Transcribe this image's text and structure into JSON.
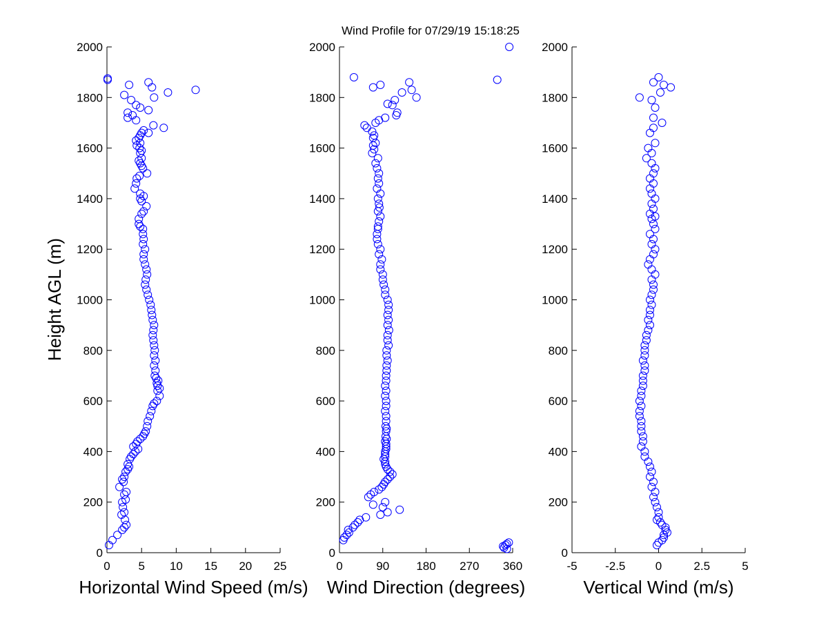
{
  "title": "Wind Profile for  07/29/19 15:18:25",
  "ylabel": "Height AGL (m)",
  "colors": {
    "marker": "#0000ff",
    "axes": "#000000",
    "background": "#ffffff"
  },
  "chart_data": [
    {
      "type": "scatter",
      "xlabel": "Horizontal Wind Speed (m/s)",
      "ylabel": "Height AGL (m)",
      "xlim": [
        0,
        25
      ],
      "ylim": [
        0,
        2000
      ],
      "xticks": [
        "0",
        "5",
        "10",
        "15",
        "20",
        "25"
      ],
      "yticks": [
        "0",
        "200",
        "400",
        "600",
        "800",
        "1000",
        "1200",
        "1400",
        "1600",
        "1800",
        "2000"
      ],
      "grid": false,
      "marker": "open-circle",
      "x": [
        0.1,
        0.1,
        3.2,
        6.0,
        2.5,
        12.8,
        8.8,
        6.5,
        6.8,
        3.5,
        4.2,
        4.8,
        3.0,
        6.0,
        3.7,
        4.2,
        6.7,
        3.0,
        8.2,
        5.3,
        5.0,
        6.0,
        4.8,
        4.6,
        4.2,
        4.8,
        4.3,
        4.7,
        5.0,
        4.8,
        5.0,
        4.6,
        4.8,
        5.0,
        5.2,
        5.8,
        4.7,
        4.3,
        4.2,
        4.0,
        4.8,
        5.3,
        4.8,
        5.0,
        5.7,
        5.3,
        5.0,
        4.6,
        4.6,
        4.8,
        5.2,
        5.2,
        5.3,
        5.2,
        5.5,
        5.3,
        5.3,
        5.5,
        5.7,
        5.8,
        5.6,
        5.5,
        5.7,
        5.9,
        6.1,
        6.3,
        6.4,
        6.5,
        6.6,
        6.8,
        6.7,
        6.6,
        6.7,
        6.8,
        6.9,
        6.8,
        7.0,
        6.8,
        7.0,
        6.9,
        7.1,
        7.4,
        7.2,
        7.3,
        7.6,
        7.3,
        7.6,
        7.2,
        6.8,
        6.6,
        6.4,
        6.2,
        5.9,
        5.8,
        5.6,
        5.4,
        5.2,
        4.8,
        4.4,
        4.2,
        3.8,
        4.5,
        4.1,
        3.8,
        3.5,
        3.3,
        3.0,
        3.2,
        3.0,
        2.7,
        2.5,
        2.2,
        2.4,
        1.8,
        2.8,
        2.5,
        2.7,
        2.2,
        2.3,
        2.5,
        2.1,
        2.6,
        2.8,
        2.5,
        2.2,
        1.5,
        0.8,
        0.3
      ],
      "y": [
        1875,
        1870,
        1850,
        1860,
        1810,
        1830,
        1820,
        1840,
        1800,
        1790,
        1770,
        1760,
        1740,
        1750,
        1730,
        1710,
        1690,
        1720,
        1680,
        1670,
        1660,
        1660,
        1650,
        1640,
        1630,
        1620,
        1610,
        1600,
        1590,
        1580,
        1560,
        1550,
        1540,
        1530,
        1520,
        1500,
        1490,
        1480,
        1460,
        1440,
        1420,
        1410,
        1400,
        1390,
        1370,
        1350,
        1340,
        1320,
        1300,
        1290,
        1280,
        1260,
        1240,
        1220,
        1200,
        1180,
        1160,
        1140,
        1120,
        1100,
        1080,
        1060,
        1040,
        1020,
        1000,
        980,
        960,
        940,
        920,
        900,
        880,
        860,
        840,
        820,
        800,
        780,
        760,
        740,
        720,
        700,
        690,
        680,
        670,
        660,
        650,
        640,
        620,
        600,
        590,
        580,
        560,
        540,
        520,
        500,
        480,
        470,
        460,
        450,
        440,
        430,
        420,
        410,
        400,
        390,
        380,
        370,
        350,
        340,
        330,
        320,
        300,
        290,
        280,
        260,
        240,
        230,
        210,
        200,
        180,
        160,
        150,
        130,
        110,
        100,
        90,
        70,
        50,
        30
      ]
    },
    {
      "type": "scatter",
      "xlabel": "Wind Direction (degrees)",
      "ylabel": "",
      "xlim": [
        0,
        360
      ],
      "ylim": [
        0,
        2000
      ],
      "xticks": [
        "0",
        "90",
        "180",
        "270",
        "360"
      ],
      "yticks": [
        "0",
        "200",
        "400",
        "600",
        "800",
        "1000",
        "1200",
        "1400",
        "1600",
        "1800",
        "2000"
      ],
      "grid": false,
      "marker": "open-circle",
      "x": [
        353,
        328,
        30,
        145,
        85,
        70,
        130,
        150,
        160,
        115,
        100,
        110,
        120,
        118,
        95,
        82,
        75,
        52,
        57,
        68,
        72,
        70,
        75,
        70,
        72,
        68,
        80,
        75,
        78,
        82,
        80,
        82,
        78,
        85,
        80,
        82,
        83,
        80,
        85,
        82,
        80,
        80,
        78,
        78,
        80,
        85,
        82,
        88,
        85,
        85,
        90,
        90,
        92,
        95,
        95,
        100,
        102,
        102,
        100,
        102,
        100,
        103,
        100,
        100,
        102,
        98,
        98,
        100,
        98,
        98,
        97,
        97,
        95,
        97,
        95,
        97,
        97,
        95,
        97,
        97,
        96,
        98,
        97,
        96,
        98,
        95,
        97,
        97,
        97,
        95,
        95,
        95,
        92,
        95,
        95,
        97,
        100,
        105,
        110,
        105,
        100,
        95,
        92,
        88,
        82,
        72,
        65,
        60,
        95,
        70,
        90,
        125,
        100,
        85,
        55,
        42,
        38,
        32,
        28,
        18,
        20,
        15,
        10,
        8,
        352,
        348,
        345,
        340,
        342,
        348
      ],
      "y": [
        2000,
        1870,
        1880,
        1860,
        1850,
        1840,
        1820,
        1830,
        1800,
        1790,
        1775,
        1770,
        1740,
        1730,
        1720,
        1710,
        1700,
        1690,
        1680,
        1665,
        1650,
        1640,
        1620,
        1610,
        1595,
        1580,
        1560,
        1540,
        1520,
        1500,
        1480,
        1460,
        1440,
        1420,
        1400,
        1380,
        1365,
        1350,
        1330,
        1310,
        1290,
        1280,
        1260,
        1240,
        1220,
        1200,
        1180,
        1160,
        1140,
        1120,
        1100,
        1080,
        1060,
        1040,
        1020,
        1000,
        980,
        960,
        940,
        920,
        900,
        880,
        860,
        840,
        820,
        800,
        780,
        760,
        740,
        720,
        700,
        680,
        660,
        640,
        620,
        600,
        580,
        560,
        540,
        520,
        500,
        490,
        480,
        460,
        450,
        440,
        430,
        420,
        410,
        400,
        390,
        380,
        370,
        360,
        350,
        340,
        330,
        320,
        310,
        300,
        290,
        280,
        270,
        260,
        250,
        240,
        230,
        220,
        200,
        190,
        180,
        170,
        160,
        150,
        140,
        130,
        120,
        110,
        100,
        90,
        80,
        70,
        60,
        50,
        40,
        35,
        30,
        25,
        20,
        15
      ]
    },
    {
      "type": "scatter",
      "xlabel": "Vertical Wind (m/s)",
      "ylabel": "",
      "xlim": [
        -5,
        5
      ],
      "ylim": [
        0,
        2000
      ],
      "xticks": [
        "-5",
        "-2.5",
        "0",
        "2.5",
        "5"
      ],
      "yticks": [
        "0",
        "200",
        "400",
        "600",
        "800",
        "1000",
        "1200",
        "1400",
        "1600",
        "1800",
        "2000"
      ],
      "grid": false,
      "marker": "open-circle",
      "x": [
        0.0,
        -0.3,
        0.3,
        0.7,
        -1.1,
        0.1,
        -0.4,
        -0.2,
        -0.3,
        0.2,
        -0.3,
        -0.5,
        -0.2,
        -0.6,
        -0.4,
        -0.7,
        -0.4,
        -0.2,
        -0.3,
        -0.5,
        -0.3,
        -0.5,
        -0.4,
        -0.2,
        -0.4,
        -0.3,
        -0.5,
        -0.2,
        -0.4,
        -0.3,
        -0.2,
        -0.5,
        -0.3,
        -0.4,
        -0.2,
        -0.3,
        -0.5,
        -0.6,
        -0.4,
        -0.2,
        -0.4,
        -0.3,
        -0.3,
        -0.4,
        -0.5,
        -0.4,
        -0.5,
        -0.5,
        -0.6,
        -0.5,
        -0.6,
        -0.7,
        -0.7,
        -0.8,
        -0.8,
        -0.8,
        -0.9,
        -0.8,
        -0.8,
        -0.9,
        -0.9,
        -0.9,
        -1.0,
        -1.0,
        -1.1,
        -1.0,
        -1.1,
        -1.1,
        -1.0,
        -1.0,
        -1.0,
        -0.9,
        -0.9,
        -1.0,
        -0.8,
        -0.8,
        -0.6,
        -0.5,
        -0.4,
        -0.5,
        -0.3,
        -0.4,
        -0.2,
        -0.3,
        -0.2,
        -0.1,
        0.0,
        0.0,
        -0.1,
        0.1,
        0.2,
        0.4,
        0.4,
        0.5,
        0.3,
        0.3,
        0.2,
        0.0,
        -0.1
      ],
      "y": [
        1880,
        1860,
        1850,
        1840,
        1800,
        1820,
        1790,
        1760,
        1720,
        1700,
        1680,
        1660,
        1620,
        1600,
        1580,
        1560,
        1540,
        1520,
        1500,
        1480,
        1460,
        1440,
        1420,
        1400,
        1380,
        1360,
        1340,
        1330,
        1320,
        1300,
        1280,
        1260,
        1240,
        1220,
        1200,
        1180,
        1160,
        1140,
        1120,
        1100,
        1080,
        1060,
        1040,
        1020,
        1000,
        980,
        960,
        940,
        920,
        900,
        880,
        860,
        840,
        820,
        800,
        780,
        760,
        740,
        720,
        700,
        680,
        660,
        640,
        620,
        600,
        580,
        560,
        540,
        520,
        500,
        480,
        460,
        440,
        420,
        400,
        380,
        360,
        340,
        320,
        300,
        280,
        260,
        240,
        220,
        200,
        180,
        160,
        140,
        130,
        120,
        110,
        100,
        90,
        80,
        70,
        60,
        50,
        40,
        30
      ]
    }
  ]
}
